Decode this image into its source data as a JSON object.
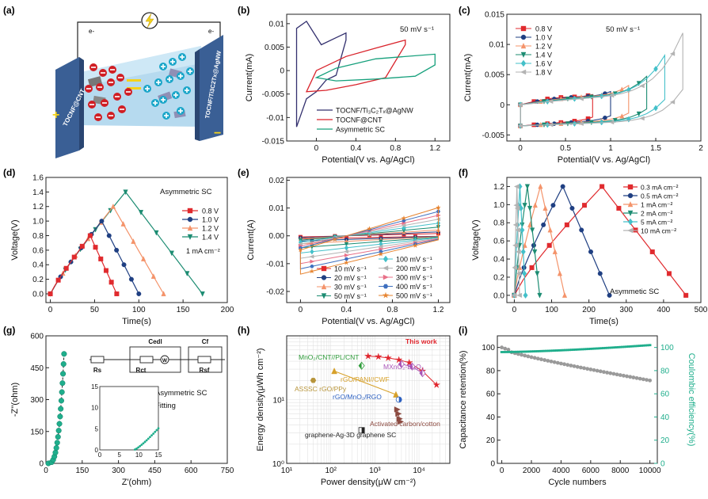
{
  "figure": {
    "background": "#ffffff"
  },
  "panels": {
    "a": {
      "label": "(a)",
      "left_electrode_label": "TOCNF@CNT",
      "right_electrode_label": "TOCNF/Ti3C2Tx@AgNW",
      "left_wire_label": "e-",
      "right_wire_label": "e-",
      "symbol_icon": "lightning-bulb-icon",
      "colors": {
        "anion": "#d01e24",
        "cation": "#1ba6c9",
        "electrode": "#3a5f95",
        "electrolyte": "#9cc8e5"
      }
    },
    "b": {
      "label": "(b)",
      "scan_rate": "50 mV s⁻¹"
    },
    "c": {
      "label": "(c)",
      "scan_rate": "50 mV s⁻¹"
    },
    "d": {
      "label": "(d)",
      "device": "Asymmetric SC",
      "current_density": "1 mA cm⁻²"
    },
    "e": {
      "label": "(e)"
    },
    "f": {
      "label": "(f)",
      "device": "Asymmetic SC"
    },
    "g": {
      "label": "(g)",
      "circuit_labels": [
        "Rs",
        "Rct",
        "W",
        "Cedl",
        "Rsf",
        "Cf"
      ],
      "legend": [
        "Asymmetric SC",
        "Fitting"
      ]
    },
    "h": {
      "label": "(h)",
      "highlight": "This work"
    },
    "i": {
      "label": "(i)"
    }
  },
  "chart_data": [
    {
      "panel": "b",
      "type": "line",
      "xlabel": "Potential(V vs. Ag/AgCl)",
      "ylabel": "Current(mA)",
      "xlim": [
        -0.3,
        1.35
      ],
      "ylim": [
        -0.015,
        0.012
      ],
      "xticks": [
        0.0,
        0.4,
        0.8,
        1.2
      ],
      "yticks": [
        -0.015,
        -0.01,
        -0.005,
        0.0,
        0.005,
        0.01
      ],
      "series": [
        {
          "name": "TOCNF/Ti₃C₂Tₓ@AgNW",
          "color": "#33306e",
          "points": [
            [
              -0.2,
              -0.012
            ],
            [
              -0.2,
              0.009
            ],
            [
              -0.1,
              0.0105
            ],
            [
              0.05,
              0.0055
            ],
            [
              0.2,
              0.007
            ],
            [
              0.3,
              0.008
            ],
            [
              0.3,
              0.0065
            ],
            [
              0.2,
              -0.001
            ],
            [
              0.1,
              -0.002
            ],
            [
              0.0,
              -0.0045
            ],
            [
              -0.1,
              -0.006
            ],
            [
              -0.2,
              -0.012
            ]
          ]
        },
        {
          "name": "TOCNF@CNT",
          "color": "#d9232b",
          "points": [
            [
              -0.1,
              -0.0045
            ],
            [
              0.0,
              0.0
            ],
            [
              0.3,
              0.003
            ],
            [
              0.6,
              0.0048
            ],
            [
              0.9,
              0.0065
            ],
            [
              0.9,
              0.0055
            ],
            [
              0.7,
              -0.0015
            ],
            [
              0.4,
              -0.003
            ],
            [
              0.1,
              -0.0042
            ],
            [
              -0.1,
              -0.0045
            ]
          ]
        },
        {
          "name": "Asymmetric SC",
          "color": "#16a07c",
          "points": [
            [
              0.0,
              -0.0015
            ],
            [
              0.2,
              0.0005
            ],
            [
              0.6,
              0.0025
            ],
            [
              1.2,
              0.0035
            ],
            [
              1.2,
              0.0012
            ],
            [
              1.0,
              -0.0012
            ],
            [
              0.6,
              -0.0018
            ],
            [
              0.2,
              -0.0022
            ],
            [
              0.0,
              -0.0015
            ]
          ]
        }
      ]
    },
    {
      "panel": "c",
      "type": "line",
      "xlabel": "Potential(V vs. Ag/AgCl)",
      "ylabel": "Current(mA)",
      "xlim": [
        -0.15,
        2.0
      ],
      "ylim": [
        -0.006,
        0.015
      ],
      "xticks": [
        0.0,
        0.5,
        1.0,
        1.5,
        2.0
      ],
      "yticks": [
        -0.005,
        0.0,
        0.005,
        0.01,
        0.015
      ],
      "series": [
        {
          "name": "0.8 V",
          "color": "#e02a2e",
          "vmax": 0.8,
          "topend": 0.001,
          "marker": "square"
        },
        {
          "name": "1.0 V",
          "color": "#1f3f82",
          "vmax": 1.0,
          "topend": 0.0015,
          "marker": "circle"
        },
        {
          "name": "1.2 V",
          "color": "#f4936a",
          "vmax": 1.2,
          "topend": 0.0025,
          "marker": "triangle"
        },
        {
          "name": "1.4 V",
          "color": "#1c8c72",
          "vmax": 1.4,
          "topend": 0.004,
          "marker": "triangle-down"
        },
        {
          "name": "1.6 V",
          "color": "#43c0c9",
          "vmax": 1.6,
          "topend": 0.0075,
          "marker": "diamond"
        },
        {
          "name": "1.8 V",
          "color": "#b3b3b3",
          "vmax": 1.8,
          "topend": 0.0112,
          "marker": "triangle-left"
        }
      ]
    },
    {
      "panel": "d",
      "type": "line",
      "xlabel": "Time(s)",
      "ylabel": "Voltage(V)",
      "xlim": [
        -5,
        200
      ],
      "ylim": [
        -0.12,
        1.6
      ],
      "xticks": [
        0,
        50,
        100,
        150,
        200
      ],
      "yticks": [
        0.0,
        0.2,
        0.4,
        0.6,
        0.8,
        1.0,
        1.2,
        1.4,
        1.6
      ],
      "series": [
        {
          "name": "0.8 V",
          "color": "#e02a2e",
          "marker": "square",
          "tpeak": 45,
          "tend": 75,
          "vmax": 0.8
        },
        {
          "name": "1.0 V",
          "color": "#1f3f82",
          "marker": "circle",
          "tpeak": 58,
          "tend": 100,
          "vmax": 1.0
        },
        {
          "name": "1.2 V",
          "color": "#f4936a",
          "marker": "triangle",
          "tpeak": 71,
          "tend": 128,
          "vmax": 1.2
        },
        {
          "name": "1.4 V",
          "color": "#1c8c72",
          "marker": "triangle-down",
          "tpeak": 85,
          "tend": 172,
          "vmax": 1.4
        }
      ]
    },
    {
      "panel": "e",
      "type": "line",
      "xlabel": "Potential(V vs. Ag/AgCl)",
      "ylabel": "Current(A)",
      "xlim": [
        -0.12,
        1.3
      ],
      "ylim": [
        -0.024,
        0.021
      ],
      "xticks": [
        0.0,
        0.4,
        0.8,
        1.2
      ],
      "yticks": [
        -0.02,
        -0.01,
        0.0,
        0.01,
        0.02
      ],
      "series": [
        {
          "name": "10 mV s⁻¹",
          "color": "#e02a2e",
          "marker": "square",
          "amp": 0.0012
        },
        {
          "name": "20 mV s⁻¹",
          "color": "#1f3f82",
          "marker": "circle",
          "amp": 0.002
        },
        {
          "name": "30 mV s⁻¹",
          "color": "#f4936a",
          "marker": "triangle",
          "amp": 0.003
        },
        {
          "name": "50 mV s⁻¹",
          "color": "#1c8c72",
          "marker": "triangle-down",
          "amp": 0.0045
        },
        {
          "name": "100 mV s⁻¹",
          "color": "#43c0c9",
          "marker": "diamond",
          "amp": 0.0065
        },
        {
          "name": "200 mV s⁻¹",
          "color": "#b3b3b3",
          "marker": "triangle-left",
          "amp": 0.0085
        },
        {
          "name": "300 mV s⁻¹",
          "color": "#e87088",
          "marker": "triangle-right",
          "amp": 0.0105
        },
        {
          "name": "400 mV s⁻¹",
          "color": "#3e6fbf",
          "marker": "hexagon",
          "amp": 0.0125
        },
        {
          "name": "500 mV s⁻¹",
          "color": "#e6832f",
          "marker": "star",
          "amp": 0.0145
        }
      ]
    },
    {
      "panel": "f",
      "type": "line",
      "xlabel": "Time(s)",
      "ylabel": "Voltage(V)",
      "xlim": [
        -20,
        500
      ],
      "ylim": [
        -0.08,
        1.3
      ],
      "xticks": [
        0,
        100,
        200,
        300,
        400,
        500
      ],
      "yticks": [
        0.0,
        0.2,
        0.4,
        0.6,
        0.8,
        1.0,
        1.2
      ],
      "series": [
        {
          "name": "0.3 mA cm⁻²",
          "color": "#e02a2e",
          "marker": "square",
          "tpeak": 235,
          "tend": 460
        },
        {
          "name": "0.5 mA cm⁻²",
          "color": "#1f3f82",
          "marker": "circle",
          "tpeak": 130,
          "tend": 255
        },
        {
          "name": "1 mA cm⁻²",
          "color": "#f4936a",
          "marker": "triangle",
          "tpeak": 70,
          "tend": 135
        },
        {
          "name": "2 mA cm⁻²",
          "color": "#1c8c72",
          "marker": "triangle-down",
          "tpeak": 35,
          "tend": 68
        },
        {
          "name": "5 mA cm⁻²",
          "color": "#43c0c9",
          "marker": "diamond",
          "tpeak": 15,
          "tend": 30
        },
        {
          "name": "10 mA cm⁻²",
          "color": "#b3b3b3",
          "marker": "triangle-left",
          "tpeak": 7,
          "tend": 14
        }
      ]
    },
    {
      "panel": "g",
      "type": "scatter",
      "xlabel": "Z'(ohm)",
      "ylabel": "-Z''(ohm)",
      "xlim": [
        0,
        750
      ],
      "ylim": [
        0,
        600
      ],
      "xticks": [
        0,
        150,
        300,
        450,
        600,
        750
      ],
      "yticks": [
        0,
        150,
        300,
        450,
        600
      ],
      "inset": {
        "xlim": [
          0,
          15
        ],
        "ylim": [
          0,
          15
        ],
        "xticks": [
          0,
          5,
          10,
          15
        ],
        "yticks": [
          0,
          5,
          10,
          15
        ]
      },
      "series": [
        {
          "name": "Asymmetric SC",
          "color": "#1fae8c",
          "marker": "circle"
        },
        {
          "name": "Fitting",
          "color": "#222222",
          "style": "dashed"
        }
      ]
    },
    {
      "panel": "h",
      "type": "scatter",
      "xlabel": "Power density(μW cm⁻²)",
      "ylabel": "Energy density(μWh cm⁻²)",
      "xscale": "log",
      "yscale": "log",
      "xlim": [
        10,
        50000
      ],
      "ylim": [
        1,
        100
      ],
      "xtick_labels": [
        "10¹",
        "10²",
        "10³",
        "10⁴"
      ],
      "ytick_labels": [
        "10⁰",
        "10¹"
      ],
      "series": [
        {
          "name": "This work",
          "color": "#e0242c",
          "marker": "star",
          "x": [
            700,
            1200,
            2000,
            3500,
            6000,
            12000,
            25000
          ],
          "y": [
            48,
            47,
            45,
            42,
            38,
            28,
            17
          ]
        },
        {
          "name": "MXnO₂-Bi₂O₃",
          "color": "#a855b7",
          "marker": "diamond-half",
          "x": [
            4000,
            7000,
            12000
          ],
          "y": [
            36,
            33,
            26
          ]
        },
        {
          "name": "MnO₂/CNT//PL/CNT",
          "color": "#2e9c3a",
          "marker": "diamond-half",
          "x": [
            500
          ],
          "y": [
            34
          ]
        },
        {
          "name": "rGO/PANI//CWF",
          "color": "#d7a12a",
          "marker": "triangle",
          "x": [
            120,
            3000
          ],
          "y": [
            28,
            12
          ]
        },
        {
          "name": "ASSSC rGO/PPy",
          "color": "#b7943a",
          "marker": "hexagon",
          "x": [
            40
          ],
          "y": [
            20
          ]
        },
        {
          "name": "rGO/MnO₂/RGO",
          "color": "#2c60c0",
          "marker": "circle-half",
          "x": [
            3500
          ],
          "y": [
            10
          ]
        },
        {
          "name": "Activated carbon/cotton",
          "color": "#8c4a40",
          "marker": "triangle-right",
          "x": [
            3200,
            3400,
            3600,
            3800
          ],
          "y": [
            7,
            6,
            5,
            4.5
          ]
        },
        {
          "name": "graphene-Ag-3D graphene SC",
          "color": "#222222",
          "marker": "square-half",
          "x": [
            500
          ],
          "y": [
            3.3
          ]
        }
      ]
    },
    {
      "panel": "i",
      "type": "scatter",
      "xlabel": "Cycle numbers",
      "ylabel": "Capacitance retention(%)",
      "ylabel_right": "Coulombic efficiency(%)",
      "xlim": [
        -300,
        10500
      ],
      "ylim": [
        0,
        110
      ],
      "ylim_right": [
        0,
        110
      ],
      "xticks": [
        0,
        2000,
        4000,
        6000,
        8000,
        10000
      ],
      "yticks": [
        0,
        20,
        40,
        60,
        80,
        100
      ],
      "series": [
        {
          "name": "Capacitance retention",
          "color": "#9a9a9a",
          "start": 100,
          "end": 73
        },
        {
          "name": "Coulombic efficiency",
          "color": "#1fae8c",
          "start": 96,
          "end": 102
        }
      ]
    }
  ]
}
